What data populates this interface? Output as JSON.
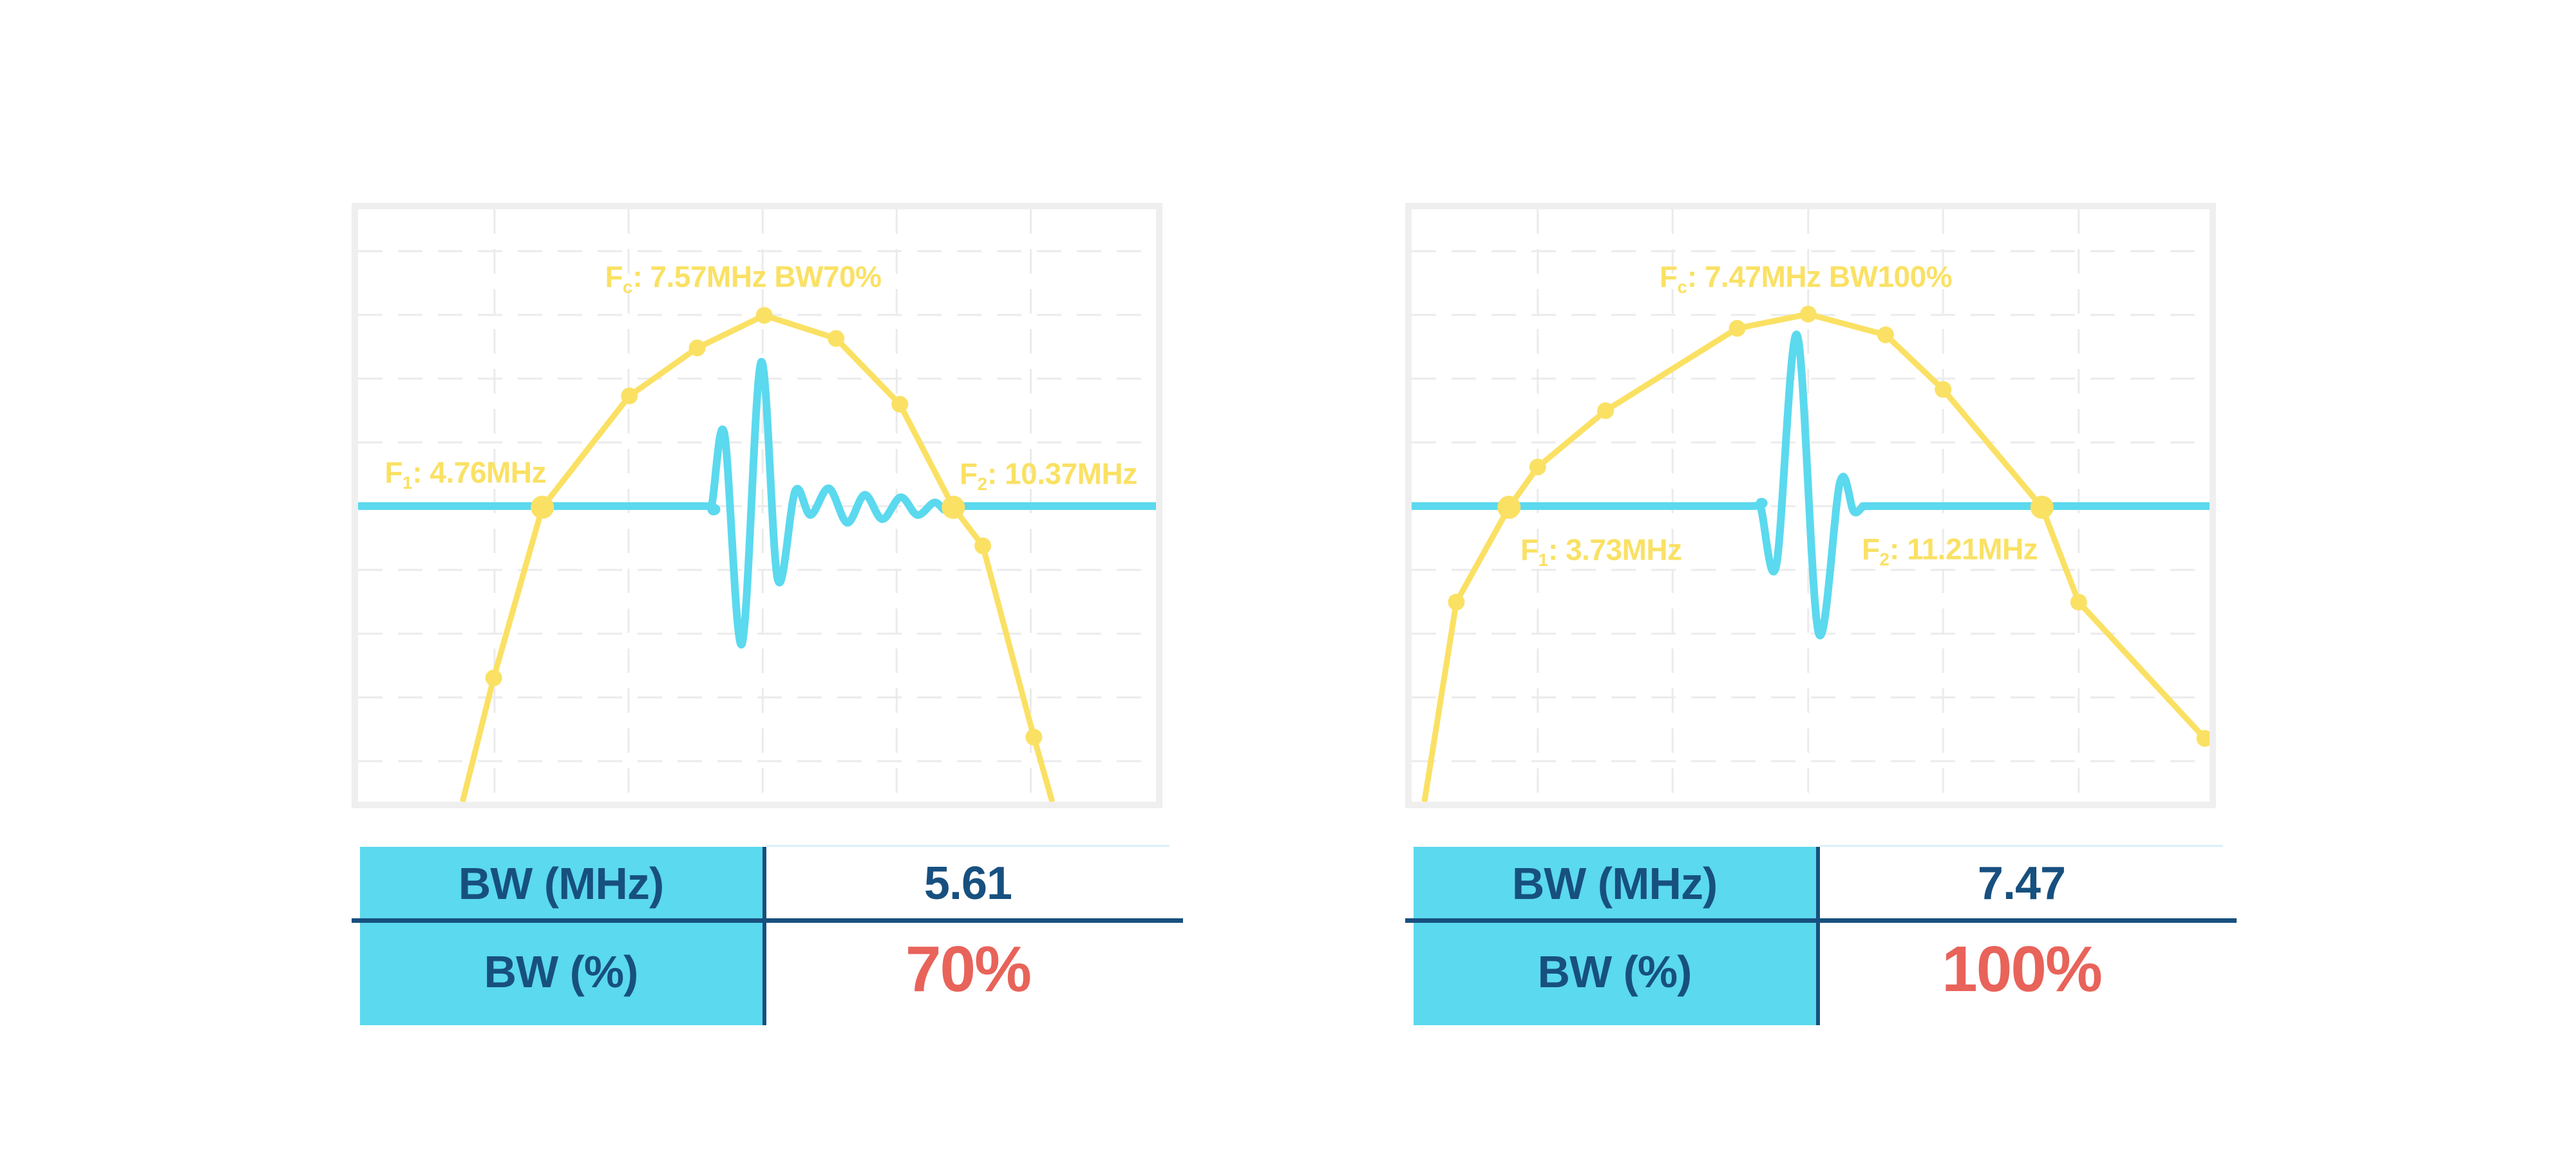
{
  "colors": {
    "spectrum_yellow": "#fae164",
    "waveform_cyan": "#5bd9ee",
    "navy_text": "#17507f",
    "accent_red": "#e8635a",
    "grid_gray": "#ebebeb",
    "plot_border_gray": "#efefef",
    "table_fill_cyan": "#5bd9ee",
    "table_light_rule": "#d9f1f8"
  },
  "chart_data": [
    {
      "type": "line",
      "title": "",
      "xlabel": "",
      "ylabel": "",
      "grid": true,
      "legend": "none",
      "values": {
        "fc_mhz": 7.57,
        "f1_mhz": 4.76,
        "f2_mhz": 10.37,
        "bw_mhz": 5.61,
        "bw_pct": 70
      },
      "series": [
        {
          "name": "pulse-spectrum",
          "color_key": "spectrum_yellow",
          "style": "polyline-with-markers",
          "points_frac": [
            [
              0.131,
              1.0,
              0
            ],
            [
              0.17,
              0.791,
              1
            ],
            [
              0.231,
              0.503,
              2
            ],
            [
              0.34,
              0.315,
              1
            ],
            [
              0.425,
              0.234,
              1
            ],
            [
              0.509,
              0.179,
              1
            ],
            [
              0.599,
              0.218,
              1
            ],
            [
              0.679,
              0.329,
              1
            ],
            [
              0.746,
              0.503,
              2
            ],
            [
              0.783,
              0.568,
              1
            ],
            [
              0.847,
              0.891,
              1
            ],
            [
              0.87,
              1.0,
              0
            ]
          ]
        },
        {
          "name": "echo-waveform",
          "color_key": "waveform_cyan",
          "style": "smooth",
          "points_frac": [
            [
              0.0,
              0.501
            ],
            [
              0.25,
              0.501
            ],
            [
              0.433,
              0.501
            ],
            [
              0.443,
              0.501
            ],
            [
              0.459,
              0.378
            ],
            [
              0.481,
              0.734
            ],
            [
              0.505,
              0.258
            ],
            [
              0.526,
              0.625
            ],
            [
              0.548,
              0.475
            ],
            [
              0.567,
              0.516
            ],
            [
              0.59,
              0.471
            ],
            [
              0.613,
              0.529
            ],
            [
              0.635,
              0.482
            ],
            [
              0.657,
              0.523
            ],
            [
              0.68,
              0.486
            ],
            [
              0.701,
              0.516
            ],
            [
              0.722,
              0.495
            ],
            [
              0.736,
              0.508
            ],
            [
              0.748,
              0.501
            ],
            [
              0.76,
              0.501
            ],
            [
              0.87,
              0.501
            ],
            [
              1.0,
              0.501
            ]
          ]
        }
      ],
      "annotations": {
        "fc": {
          "prefix": "F",
          "sub": "c",
          "rest": ": 7.57MHz BW70%",
          "fx": 0.483,
          "fy": 0.117,
          "align": "center"
        },
        "f1": {
          "prefix": "F",
          "sub": "1",
          "rest": ": 4.76MHz",
          "fx": 0.236,
          "fy": 0.448,
          "align": "right"
        },
        "f2": {
          "prefix": "F",
          "sub": "2",
          "rest": ": 10.37MHz",
          "fx": 0.754,
          "fy": 0.45,
          "align": "left"
        }
      },
      "table": {
        "rows": [
          {
            "label": "BW (MHz)",
            "value": "5.61"
          },
          {
            "label": "BW (%)",
            "value": "70%"
          }
        ]
      }
    },
    {
      "type": "line",
      "title": "",
      "xlabel": "",
      "ylabel": "",
      "grid": true,
      "legend": "none",
      "values": {
        "fc_mhz": 7.47,
        "f1_mhz": 3.73,
        "f2_mhz": 11.21,
        "bw_mhz": 7.47,
        "bw_pct": 100
      },
      "series": [
        {
          "name": "pulse-spectrum",
          "color_key": "spectrum_yellow",
          "style": "polyline-with-markers",
          "points_frac": [
            [
              0.016,
              1.0,
              0
            ],
            [
              0.056,
              0.663,
              1
            ],
            [
              0.122,
              0.503,
              2
            ],
            [
              0.158,
              0.435,
              1
            ],
            [
              0.243,
              0.34,
              1
            ],
            [
              0.408,
              0.201,
              1
            ],
            [
              0.497,
              0.177,
              1
            ],
            [
              0.594,
              0.212,
              1
            ],
            [
              0.666,
              0.304,
              1
            ],
            [
              0.79,
              0.503,
              2
            ],
            [
              0.836,
              0.663,
              1
            ],
            [
              0.994,
              0.893,
              1
            ]
          ]
        },
        {
          "name": "echo-waveform",
          "color_key": "waveform_cyan",
          "style": "smooth",
          "points_frac": [
            [
              0.0,
              0.501
            ],
            [
              0.25,
              0.501
            ],
            [
              0.425,
              0.501
            ],
            [
              0.437,
              0.501
            ],
            [
              0.457,
              0.601
            ],
            [
              0.483,
              0.212
            ],
            [
              0.51,
              0.715
            ],
            [
              0.537,
              0.46
            ],
            [
              0.554,
              0.51
            ],
            [
              0.566,
              0.502
            ],
            [
              0.578,
              0.501
            ],
            [
              0.7,
              0.501
            ],
            [
              1.0,
              0.501
            ]
          ]
        }
      ],
      "annotations": {
        "fc": {
          "prefix": "F",
          "sub": "c",
          "rest": ": 7.47MHz BW100%",
          "fx": 0.494,
          "fy": 0.117,
          "align": "center"
        },
        "f1": {
          "prefix": "F",
          "sub": "1",
          "rest": ": 3.73MHz",
          "fx": 0.136,
          "fy": 0.578,
          "align": "left"
        },
        "f2": {
          "prefix": "F",
          "sub": "2",
          "rest": ": 11.21MHz",
          "fx": 0.564,
          "fy": 0.577,
          "align": "left"
        }
      },
      "table": {
        "rows": [
          {
            "label": "BW (MHz)",
            "value": "7.47"
          },
          {
            "label": "BW (%)",
            "value": "100%"
          }
        ]
      }
    }
  ]
}
